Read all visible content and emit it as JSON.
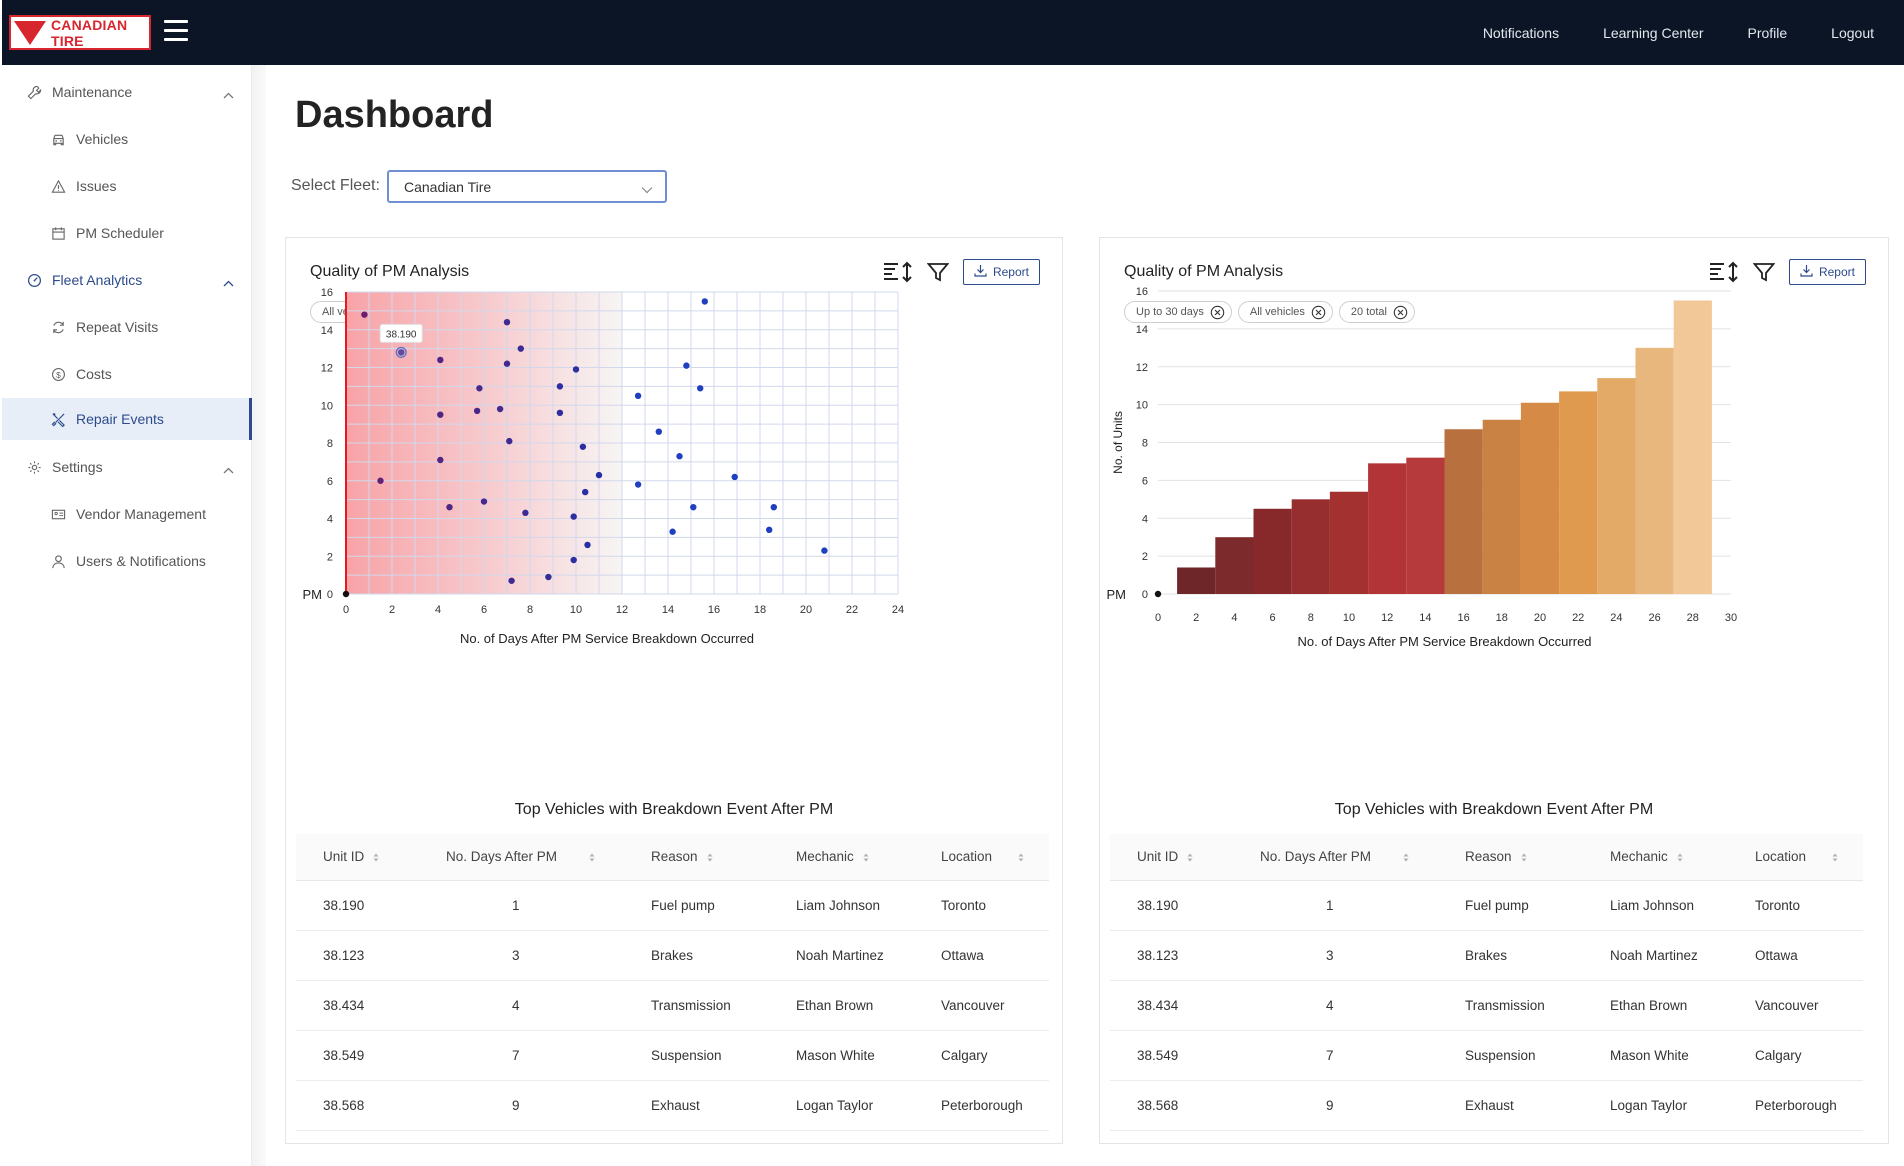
{
  "header": {
    "logo_text": "CANADIAN TIRE",
    "nav": [
      "Notifications",
      "Learning Center",
      "Profile",
      "Logout"
    ]
  },
  "sidebar": {
    "items": [
      {
        "label": "Maintenance",
        "type": "section",
        "icon": "wrench-icon"
      },
      {
        "label": "Vehicles",
        "type": "sub",
        "icon": "car-icon"
      },
      {
        "label": "Issues",
        "type": "sub",
        "icon": "warning-icon"
      },
      {
        "label": "PM Scheduler",
        "type": "sub",
        "icon": "calendar-icon"
      },
      {
        "label": "Fleet Analytics",
        "type": "section",
        "icon": "dashboard-icon"
      },
      {
        "label": "Repeat Visits",
        "type": "sub",
        "icon": "refresh-icon"
      },
      {
        "label": "Costs",
        "type": "sub",
        "icon": "dollar-icon"
      },
      {
        "label": "Repair Events",
        "type": "sub",
        "icon": "tools-icon"
      },
      {
        "label": "Settings",
        "type": "section",
        "icon": "gear-icon"
      },
      {
        "label": "Vendor Management",
        "type": "sub",
        "icon": "vendor-icon"
      },
      {
        "label": "Users & Notifications",
        "type": "sub",
        "icon": "user-icon"
      }
    ],
    "active": "Repair Events"
  },
  "page": {
    "title": "Dashboard",
    "fleet_label": "Select Fleet:",
    "fleet_value": "Canadian Tire"
  },
  "colors": {
    "topbar": "#0b1526",
    "accent": "#2c4a8c",
    "brand_red": "#d8262e",
    "scatter_point": "#1e3fbf"
  },
  "panels": [
    {
      "title": "Quality of PM Analysis",
      "report_label": "Report",
      "chips": [
        "All vehicles"
      ],
      "table_title": "Top Vehicles with Breakdown Event After PM"
    },
    {
      "title": "Quality of PM Analysis",
      "report_label": "Report",
      "chips": [
        "Up to 30 days",
        "All vehicles",
        "20 total"
      ],
      "table_title": "Top Vehicles with Breakdown Event After PM"
    }
  ],
  "chart_data": [
    {
      "type": "scatter",
      "xlabel": "No. of Days After PM Service Breakdown Occurred",
      "ylabel": "",
      "xlim": [
        0,
        24
      ],
      "ylim": [
        0,
        16
      ],
      "xticks": [
        0,
        2,
        4,
        6,
        8,
        10,
        12,
        14,
        16,
        18,
        20,
        22,
        24
      ],
      "yticks": [
        0,
        2,
        4,
        6,
        8,
        10,
        12,
        14,
        16
      ],
      "origin_label": "PM",
      "grid": true,
      "tooltip": {
        "text": "38.190",
        "x": 2.4,
        "y": 12.8
      },
      "points": [
        {
          "x": 0.8,
          "y": 14.8
        },
        {
          "x": 1.5,
          "y": 6.0
        },
        {
          "x": 2.4,
          "y": 12.8
        },
        {
          "x": 4.1,
          "y": 12.4
        },
        {
          "x": 4.1,
          "y": 9.5
        },
        {
          "x": 4.1,
          "y": 7.1
        },
        {
          "x": 4.5,
          "y": 4.6
        },
        {
          "x": 5.7,
          "y": 9.7
        },
        {
          "x": 5.8,
          "y": 10.9
        },
        {
          "x": 6.0,
          "y": 4.9
        },
        {
          "x": 6.7,
          "y": 9.8
        },
        {
          "x": 7.0,
          "y": 14.4
        },
        {
          "x": 7.0,
          "y": 12.2
        },
        {
          "x": 7.1,
          "y": 8.1
        },
        {
          "x": 7.2,
          "y": 0.7
        },
        {
          "x": 7.6,
          "y": 13.0
        },
        {
          "x": 7.8,
          "y": 4.3
        },
        {
          "x": 8.8,
          "y": 0.9
        },
        {
          "x": 9.3,
          "y": 11.0
        },
        {
          "x": 9.3,
          "y": 9.6
        },
        {
          "x": 9.9,
          "y": 4.1
        },
        {
          "x": 9.9,
          "y": 1.8
        },
        {
          "x": 10.0,
          "y": 11.9
        },
        {
          "x": 10.3,
          "y": 7.8
        },
        {
          "x": 10.4,
          "y": 5.4
        },
        {
          "x": 10.5,
          "y": 2.6
        },
        {
          "x": 11.0,
          "y": 6.3
        },
        {
          "x": 12.7,
          "y": 10.5
        },
        {
          "x": 12.7,
          "y": 5.8
        },
        {
          "x": 13.6,
          "y": 8.6
        },
        {
          "x": 14.2,
          "y": 3.3
        },
        {
          "x": 14.5,
          "y": 7.3
        },
        {
          "x": 14.8,
          "y": 12.1
        },
        {
          "x": 15.1,
          "y": 4.6
        },
        {
          "x": 15.4,
          "y": 10.9
        },
        {
          "x": 15.6,
          "y": 15.5
        },
        {
          "x": 16.9,
          "y": 6.2
        },
        {
          "x": 18.4,
          "y": 3.4
        },
        {
          "x": 18.6,
          "y": 4.6
        },
        {
          "x": 20.8,
          "y": 2.3
        }
      ]
    },
    {
      "type": "bar",
      "xlabel": "No. of Days After PM Service Breakdown Occurred",
      "ylabel": "No. of Units",
      "xlim": [
        0,
        30
      ],
      "ylim": [
        0,
        16
      ],
      "xticks": [
        0,
        2,
        4,
        6,
        8,
        10,
        12,
        14,
        16,
        18,
        20,
        22,
        24,
        26,
        28,
        30
      ],
      "yticks": [
        0,
        2,
        4,
        6,
        8,
        10,
        12,
        14,
        16
      ],
      "origin_label": "PM",
      "bins": [
        {
          "start": 1,
          "end": 3,
          "value": 1.4
        },
        {
          "start": 3,
          "end": 5,
          "value": 3.0
        },
        {
          "start": 5,
          "end": 7,
          "value": 4.5
        },
        {
          "start": 7,
          "end": 9,
          "value": 5.0
        },
        {
          "start": 9,
          "end": 11,
          "value": 5.4
        },
        {
          "start": 11,
          "end": 13,
          "value": 6.9
        },
        {
          "start": 13,
          "end": 15,
          "value": 7.2
        },
        {
          "start": 15,
          "end": 17,
          "value": 8.7
        },
        {
          "start": 17,
          "end": 19,
          "value": 9.2
        },
        {
          "start": 19,
          "end": 21,
          "value": 10.1
        },
        {
          "start": 21,
          "end": 23,
          "value": 10.7
        },
        {
          "start": 23,
          "end": 25,
          "value": 11.4
        },
        {
          "start": 25,
          "end": 27,
          "value": 13.0
        },
        {
          "start": 27,
          "end": 29,
          "value": 15.5
        }
      ],
      "colors": [
        "#6e2628",
        "#7c2a2b",
        "#87292b",
        "#962d2f",
        "#a3312f",
        "#b23436",
        "#b63a3c",
        "#b9703f",
        "#c98243",
        "#d58a45",
        "#e09a4f",
        "#e3a967",
        "#e8b77e",
        "#f3c898"
      ]
    }
  ],
  "table": {
    "columns": [
      "Unit ID",
      "No. Days After PM",
      "Reason",
      "Mechanic",
      "Location"
    ],
    "rows": [
      [
        "38.190",
        "1",
        "Fuel pump",
        "Liam Johnson",
        "Toronto"
      ],
      [
        "38.123",
        "3",
        "Brakes",
        "Noah Martinez",
        "Ottawa"
      ],
      [
        "38.434",
        "4",
        "Transmission",
        "Ethan Brown",
        "Vancouver"
      ],
      [
        "38.549",
        "7",
        "Suspension",
        "Mason White",
        "Calgary"
      ],
      [
        "38.568",
        "9",
        "Exhaust",
        "Logan Taylor",
        "Peterborough"
      ]
    ]
  }
}
